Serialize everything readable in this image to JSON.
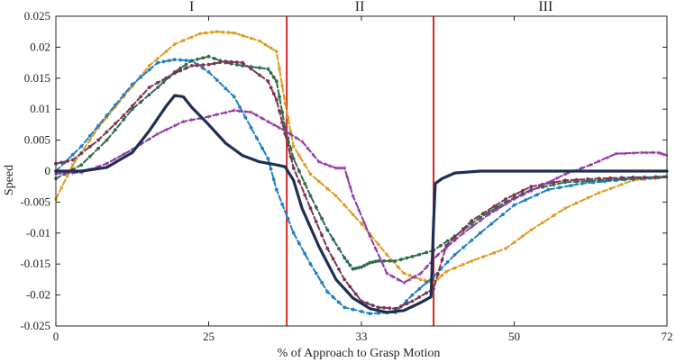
{
  "chart_data": {
    "type": "line",
    "xlabel": "% of Approach to Grasp Motion",
    "ylabel": "Speed",
    "xlim": [
      0,
      72
    ],
    "ylim": [
      -0.025,
      0.025
    ],
    "x_tick_positions": [
      0,
      18,
      36,
      54,
      72
    ],
    "x_tick_labels": [
      "0",
      "25",
      "33",
      "50",
      "72"
    ],
    "y_ticks": [
      -0.025,
      -0.02,
      -0.015,
      -0.01,
      -0.005,
      0,
      0.005,
      0.01,
      0.015,
      0.02,
      0.025
    ],
    "y_tick_labels": [
      "-0.025",
      "-0.02",
      "-0.015",
      "-0.01",
      "-0.005",
      "0",
      "0.005",
      "0.01",
      "0.015",
      "0.02",
      "0.025"
    ],
    "grid": false,
    "legend": "none",
    "phase_boundaries": [
      27.2,
      44.5
    ],
    "phase_boundary_color": "#d62728",
    "phases": [
      {
        "label": "I",
        "x": 16
      },
      {
        "label": "II",
        "x": 35.8
      },
      {
        "label": "III",
        "x": 57.7
      }
    ],
    "series": [
      {
        "color": "#e09a1f",
        "style": "dashed",
        "marker": "square",
        "width": 2,
        "points": [
          [
            0,
            -0.0045
          ],
          [
            2,
            0.001
          ],
          [
            5,
            0.007
          ],
          [
            8,
            0.012
          ],
          [
            11,
            0.017
          ],
          [
            14,
            0.0205
          ],
          [
            17,
            0.0222
          ],
          [
            19,
            0.0225
          ],
          [
            21,
            0.0223
          ],
          [
            24,
            0.021
          ],
          [
            26,
            0.0193
          ],
          [
            27,
            0.011
          ],
          [
            28,
            0.004
          ],
          [
            30,
            -0.0005
          ],
          [
            33,
            -0.004
          ],
          [
            36,
            -0.0085
          ],
          [
            39,
            -0.0135
          ],
          [
            41,
            -0.0165
          ],
          [
            43,
            -0.0175
          ],
          [
            44.5,
            -0.018
          ],
          [
            46,
            -0.0162
          ],
          [
            49,
            -0.0145
          ],
          [
            53,
            -0.0125
          ],
          [
            56,
            -0.0095
          ],
          [
            60,
            -0.006
          ],
          [
            64,
            -0.0035
          ],
          [
            68,
            -0.0015
          ],
          [
            72,
            -0.001
          ]
        ]
      },
      {
        "color": "#1f7fc4",
        "style": "dashed",
        "marker": "circle",
        "width": 2,
        "points": [
          [
            0,
            0
          ],
          [
            3,
            0.004
          ],
          [
            6,
            0.009
          ],
          [
            9,
            0.014
          ],
          [
            12,
            0.0175
          ],
          [
            14,
            0.018
          ],
          [
            16,
            0.0178
          ],
          [
            18,
            0.016
          ],
          [
            21,
            0.012
          ],
          [
            23,
            0.007
          ],
          [
            25,
            0.002
          ],
          [
            26,
            -0.003
          ],
          [
            28,
            -0.01
          ],
          [
            30,
            -0.015
          ],
          [
            32,
            -0.0195
          ],
          [
            34,
            -0.022
          ],
          [
            37,
            -0.023
          ],
          [
            40,
            -0.0228
          ],
          [
            42,
            -0.02
          ],
          [
            44.5,
            -0.017
          ],
          [
            47,
            -0.0135
          ],
          [
            50,
            -0.01
          ],
          [
            54,
            -0.0055
          ],
          [
            58,
            -0.003
          ],
          [
            62,
            -0.002
          ],
          [
            66,
            -0.0015
          ],
          [
            69,
            -0.0012
          ],
          [
            72,
            -0.001
          ]
        ]
      },
      {
        "color": "#2f6b4a",
        "style": "dashed",
        "marker": "circle",
        "width": 2,
        "points": [
          [
            0,
            -0.0012
          ],
          [
            3,
            0.001
          ],
          [
            6,
            0.005
          ],
          [
            9,
            0.01
          ],
          [
            12,
            0.0135
          ],
          [
            14,
            0.016
          ],
          [
            16,
            0.0178
          ],
          [
            18,
            0.0185
          ],
          [
            20,
            0.0175
          ],
          [
            22,
            0.017
          ],
          [
            25,
            0.0165
          ],
          [
            26,
            0.0145
          ],
          [
            27,
            0.007
          ],
          [
            28,
            0.002
          ],
          [
            30,
            -0.004
          ],
          [
            32,
            -0.0095
          ],
          [
            34,
            -0.014
          ],
          [
            35,
            -0.0158
          ],
          [
            36,
            -0.0155
          ],
          [
            37,
            -0.0148
          ],
          [
            38,
            -0.0145
          ],
          [
            40,
            -0.0145
          ],
          [
            42,
            -0.0138
          ],
          [
            44.5,
            -0.0128
          ],
          [
            47,
            -0.0105
          ],
          [
            50,
            -0.0075
          ],
          [
            53,
            -0.005
          ],
          [
            56,
            -0.003
          ],
          [
            60,
            -0.0018
          ],
          [
            64,
            -0.0015
          ],
          [
            68,
            -0.0012
          ],
          [
            72,
            -0.0008
          ]
        ]
      },
      {
        "color": "#7a3550",
        "style": "dashed",
        "marker": "circle",
        "width": 2,
        "points": [
          [
            0,
            0.0012
          ],
          [
            2,
            0.0018
          ],
          [
            5,
            0.005
          ],
          [
            8,
            0.009
          ],
          [
            11,
            0.0135
          ],
          [
            14,
            0.0158
          ],
          [
            16,
            0.017
          ],
          [
            18,
            0.0172
          ],
          [
            20,
            0.0177
          ],
          [
            22,
            0.0175
          ],
          [
            25,
            0.0145
          ],
          [
            26,
            0.0115
          ],
          [
            27,
            0.006
          ],
          [
            28,
            0.0005
          ],
          [
            30,
            -0.006
          ],
          [
            32,
            -0.0125
          ],
          [
            34,
            -0.0175
          ],
          [
            36,
            -0.021
          ],
          [
            38,
            -0.022
          ],
          [
            40,
            -0.0222
          ],
          [
            42,
            -0.021
          ],
          [
            44.5,
            -0.019
          ],
          [
            46,
            -0.012
          ],
          [
            49,
            -0.008
          ],
          [
            53,
            -0.0045
          ],
          [
            56,
            -0.0025
          ],
          [
            60,
            -0.0015
          ],
          [
            64,
            -0.0012
          ],
          [
            68,
            -0.001
          ],
          [
            72,
            -0.001
          ]
        ]
      },
      {
        "color": "#8e35a3",
        "style": "dashed",
        "marker": "star",
        "width": 2,
        "points": [
          [
            0,
            -0.0004
          ],
          [
            3,
            -0.0002
          ],
          [
            6,
            0.0012
          ],
          [
            9,
            0.0035
          ],
          [
            12,
            0.006
          ],
          [
            15,
            0.008
          ],
          [
            18,
            0.0088
          ],
          [
            21,
            0.0098
          ],
          [
            23,
            0.0095
          ],
          [
            25,
            0.008
          ],
          [
            27,
            0.0065
          ],
          [
            29,
            0.0048
          ],
          [
            31,
            0.0015
          ],
          [
            33,
            0.0005
          ],
          [
            34,
            0.0005
          ],
          [
            35,
            -0.004
          ],
          [
            37,
            -0.0105
          ],
          [
            39,
            -0.0165
          ],
          [
            41,
            -0.018
          ],
          [
            43,
            -0.0165
          ],
          [
            45,
            -0.0135
          ],
          [
            48,
            -0.01
          ],
          [
            51,
            -0.007
          ],
          [
            54,
            -0.0045
          ],
          [
            57,
            -0.0025
          ],
          [
            60,
            -0.0005
          ],
          [
            63,
            0.001
          ],
          [
            66,
            0.0028
          ],
          [
            69,
            0.003
          ],
          [
            71,
            0.003
          ],
          [
            72,
            0.0025
          ]
        ]
      },
      {
        "color": "#1d2f54",
        "style": "solid",
        "marker": "none",
        "width": 3.2,
        "points": [
          [
            0,
            0
          ],
          [
            3,
            0
          ],
          [
            6,
            0.0006
          ],
          [
            9,
            0.003
          ],
          [
            11,
            0.0065
          ],
          [
            13,
            0.0105
          ],
          [
            14,
            0.0122
          ],
          [
            15,
            0.012
          ],
          [
            16,
            0.0103
          ],
          [
            18,
            0.0075
          ],
          [
            20,
            0.0045
          ],
          [
            22,
            0.0025
          ],
          [
            24,
            0.0015
          ],
          [
            26,
            0.001
          ],
          [
            27,
            0.0007
          ],
          [
            28,
            -0.0015
          ],
          [
            29,
            -0.006
          ],
          [
            31,
            -0.0122
          ],
          [
            33,
            -0.0175
          ],
          [
            35,
            -0.0205
          ],
          [
            37,
            -0.0222
          ],
          [
            39,
            -0.0228
          ],
          [
            41,
            -0.0225
          ],
          [
            43,
            -0.0212
          ],
          [
            44.2,
            -0.0203
          ],
          [
            44.5,
            -0.0085
          ],
          [
            44.7,
            -0.002
          ],
          [
            45.5,
            -0.0012
          ],
          [
            47,
            -0.0003
          ],
          [
            50,
            0
          ],
          [
            55,
            0
          ],
          [
            60,
            0
          ],
          [
            65,
            0
          ],
          [
            72,
            0
          ]
        ]
      }
    ]
  }
}
